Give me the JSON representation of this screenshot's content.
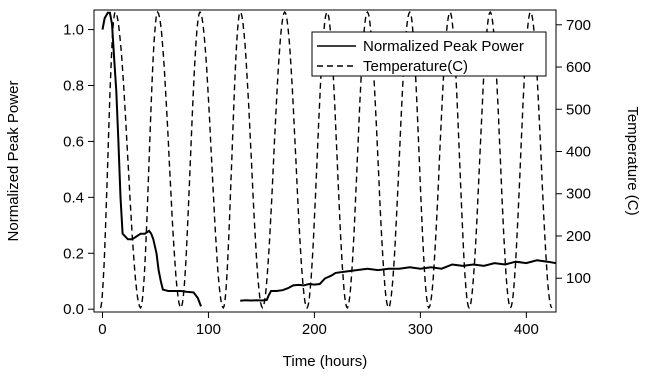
{
  "chart_data": {
    "type": "line",
    "xlabel": "Time (hours)",
    "ylabel_left": "Normalized Peak Power",
    "ylabel_right": "Temperature (C)",
    "xlim": [
      -8,
      428
    ],
    "ylim_left": [
      -0.01,
      1.07
    ],
    "ylim_right": [
      20,
      735
    ],
    "x_ticks": [
      0,
      100,
      200,
      300,
      400
    ],
    "y_left_ticks": [
      "0.0",
      "0.2",
      "0.4",
      "0.6",
      "0.8",
      "1.0"
    ],
    "y_right_ticks": [
      "100",
      "200",
      "300",
      "400",
      "500",
      "600",
      "700"
    ],
    "grid": false,
    "legend": {
      "position": "top-right",
      "entries": [
        "Normalized Peak Power",
        "Temperature(C)"
      ]
    },
    "series": [
      {
        "name": "Normalized Peak Power",
        "style": "solid",
        "axis": "left",
        "x": [
          0,
          2,
          5,
          7,
          9,
          11,
          13,
          15,
          17,
          19,
          24,
          28,
          32,
          36,
          40,
          44,
          46,
          48,
          51,
          53,
          55,
          57,
          62,
          68,
          74,
          80,
          86,
          90,
          93,
          null,
          130,
          135,
          140,
          145,
          150,
          155,
          157,
          159,
          164,
          170,
          175,
          180,
          185,
          190,
          195,
          200,
          205,
          210,
          213,
          216,
          220,
          230,
          240,
          250,
          260,
          270,
          280,
          290,
          300,
          310,
          320,
          330,
          340,
          350,
          360,
          370,
          380,
          390,
          400,
          410,
          420,
          428
        ],
        "y": [
          1.0,
          1.04,
          1.06,
          1.06,
          1.02,
          0.9,
          0.78,
          0.6,
          0.4,
          0.27,
          0.25,
          0.25,
          0.26,
          0.27,
          0.27,
          0.28,
          0.27,
          0.25,
          0.2,
          0.14,
          0.1,
          0.07,
          0.065,
          0.065,
          0.065,
          0.062,
          0.06,
          0.04,
          0.01,
          null,
          0.03,
          0.032,
          0.031,
          0.032,
          0.031,
          0.033,
          0.05,
          0.065,
          0.065,
          0.068,
          0.075,
          0.085,
          0.087,
          0.085,
          0.09,
          0.088,
          0.09,
          0.11,
          0.115,
          0.12,
          0.13,
          0.135,
          0.14,
          0.145,
          0.14,
          0.145,
          0.145,
          0.15,
          0.145,
          0.15,
          0.145,
          0.16,
          0.155,
          0.16,
          0.155,
          0.165,
          0.16,
          0.17,
          0.165,
          0.175,
          0.17,
          0.165
        ]
      },
      {
        "name": "Temperature(C)",
        "style": "dashed",
        "axis": "right",
        "cycles": {
          "peaks_hours": [
            12,
            52,
            92,
            130,
            172,
            212,
            250,
            290,
            328,
            366,
            404
          ],
          "valleys_hours": [
            -2,
            36,
            74,
            114,
            151,
            193,
            231,
            270,
            308,
            346,
            385,
            424
          ],
          "max_temp_c": 730,
          "min_temp_c": 30
        }
      }
    ]
  }
}
